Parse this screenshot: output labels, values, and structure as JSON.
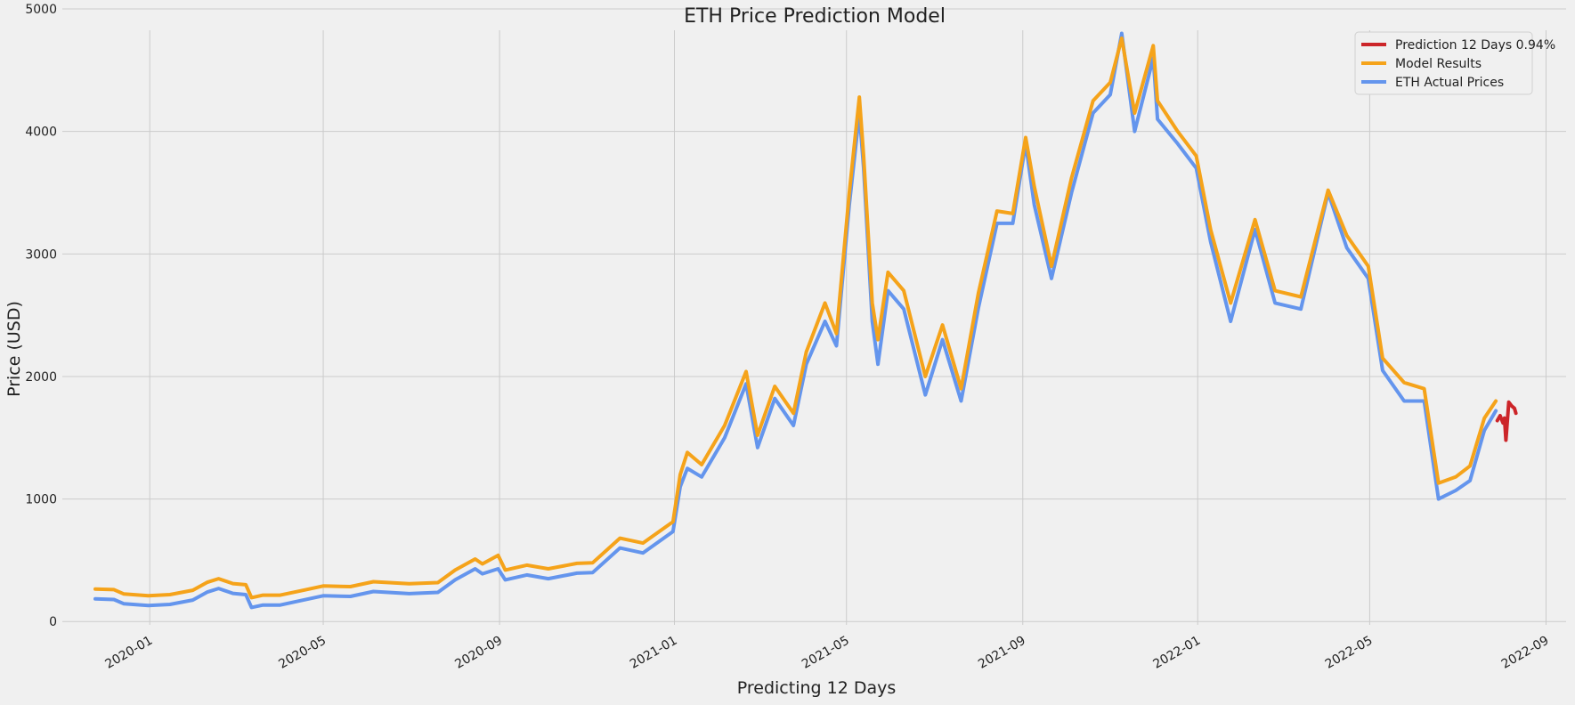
{
  "chart_data": {
    "type": "line",
    "title": "ETH Price Prediction Model",
    "xlabel": "Predicting 12 Days",
    "ylabel": "Price (USD)",
    "xlim": [
      "2019-11-01",
      "2022-09-15"
    ],
    "ylim": [
      -100,
      5000
    ],
    "y_ticks": [
      0,
      1000,
      2000,
      3000,
      4000,
      5000
    ],
    "x_ticks": [
      "2020-01",
      "2020-05",
      "2020-09",
      "2021-01",
      "2021-05",
      "2021-09",
      "2022-01",
      "2022-05",
      "2022-09"
    ],
    "grid": true,
    "legend_position": "top-right",
    "colors": {
      "background": "#f0f0f0",
      "grid": "#cbcbcb",
      "prediction": "#cc2529",
      "model": "#f5a31a",
      "actual": "#6495ed"
    },
    "series": [
      {
        "name": "ETH Actual Prices",
        "color": "#6495ed",
        "points": [
          [
            "2019-11-24",
            185
          ],
          [
            "2019-12-07",
            180
          ],
          [
            "2019-12-14",
            145
          ],
          [
            "2019-12-31",
            130
          ],
          [
            "2020-01-15",
            140
          ],
          [
            "2020-01-31",
            175
          ],
          [
            "2020-02-10",
            240
          ],
          [
            "2020-02-18",
            270
          ],
          [
            "2020-02-28",
            230
          ],
          [
            "2020-03-08",
            220
          ],
          [
            "2020-03-12",
            115
          ],
          [
            "2020-03-20",
            135
          ],
          [
            "2020-04-01",
            135
          ],
          [
            "2020-04-15",
            170
          ],
          [
            "2020-05-01",
            210
          ],
          [
            "2020-05-20",
            205
          ],
          [
            "2020-06-05",
            245
          ],
          [
            "2020-06-30",
            228
          ],
          [
            "2020-07-20",
            238
          ],
          [
            "2020-08-01",
            340
          ],
          [
            "2020-08-15",
            430
          ],
          [
            "2020-08-20",
            390
          ],
          [
            "2020-08-31",
            430
          ],
          [
            "2020-09-05",
            340
          ],
          [
            "2020-09-20",
            380
          ],
          [
            "2020-10-05",
            350
          ],
          [
            "2020-10-25",
            395
          ],
          [
            "2020-11-05",
            400
          ],
          [
            "2020-11-24",
            600
          ],
          [
            "2020-12-10",
            560
          ],
          [
            "2020-12-31",
            735
          ],
          [
            "2021-01-05",
            1100
          ],
          [
            "2021-01-10",
            1250
          ],
          [
            "2021-01-20",
            1180
          ],
          [
            "2021-02-05",
            1500
          ],
          [
            "2021-02-20",
            1940
          ],
          [
            "2021-02-28",
            1420
          ],
          [
            "2021-03-12",
            1820
          ],
          [
            "2021-03-25",
            1600
          ],
          [
            "2021-04-03",
            2100
          ],
          [
            "2021-04-16",
            2450
          ],
          [
            "2021-04-24",
            2250
          ],
          [
            "2021-05-03",
            3400
          ],
          [
            "2021-05-10",
            4150
          ],
          [
            "2021-05-13",
            3700
          ],
          [
            "2021-05-19",
            2450
          ],
          [
            "2021-05-23",
            2100
          ],
          [
            "2021-05-30",
            2700
          ],
          [
            "2021-06-10",
            2550
          ],
          [
            "2021-06-25",
            1850
          ],
          [
            "2021-07-07",
            2300
          ],
          [
            "2021-07-20",
            1800
          ],
          [
            "2021-08-01",
            2560
          ],
          [
            "2021-08-14",
            3250
          ],
          [
            "2021-08-25",
            3250
          ],
          [
            "2021-09-03",
            3900
          ],
          [
            "2021-09-09",
            3400
          ],
          [
            "2021-09-21",
            2800
          ],
          [
            "2021-10-05",
            3500
          ],
          [
            "2021-10-20",
            4150
          ],
          [
            "2021-11-01",
            4300
          ],
          [
            "2021-11-09",
            4800
          ],
          [
            "2021-11-18",
            4000
          ],
          [
            "2021-12-01",
            4600
          ],
          [
            "2021-12-04",
            4100
          ],
          [
            "2021-12-18",
            3900
          ],
          [
            "2021-12-31",
            3700
          ],
          [
            "2022-01-10",
            3100
          ],
          [
            "2022-01-24",
            2450
          ],
          [
            "2022-02-10",
            3200
          ],
          [
            "2022-02-24",
            2600
          ],
          [
            "2022-03-14",
            2550
          ],
          [
            "2022-04-02",
            3500
          ],
          [
            "2022-04-15",
            3050
          ],
          [
            "2022-04-30",
            2800
          ],
          [
            "2022-05-10",
            2050
          ],
          [
            "2022-05-25",
            1800
          ],
          [
            "2022-06-08",
            1800
          ],
          [
            "2022-06-18",
            1000
          ],
          [
            "2022-06-30",
            1070
          ],
          [
            "2022-07-10",
            1150
          ],
          [
            "2022-07-20",
            1560
          ],
          [
            "2022-07-28",
            1720
          ]
        ]
      },
      {
        "name": "Model Results",
        "color": "#f5a31a",
        "points": [
          [
            "2019-11-24",
            265
          ],
          [
            "2019-12-07",
            260
          ],
          [
            "2019-12-14",
            225
          ],
          [
            "2019-12-31",
            210
          ],
          [
            "2020-01-15",
            220
          ],
          [
            "2020-01-31",
            255
          ],
          [
            "2020-02-10",
            320
          ],
          [
            "2020-02-18",
            350
          ],
          [
            "2020-02-28",
            310
          ],
          [
            "2020-03-08",
            300
          ],
          [
            "2020-03-12",
            195
          ],
          [
            "2020-03-20",
            215
          ],
          [
            "2020-04-01",
            215
          ],
          [
            "2020-04-15",
            250
          ],
          [
            "2020-05-01",
            290
          ],
          [
            "2020-05-20",
            285
          ],
          [
            "2020-06-05",
            325
          ],
          [
            "2020-06-30",
            308
          ],
          [
            "2020-07-20",
            318
          ],
          [
            "2020-08-01",
            420
          ],
          [
            "2020-08-15",
            510
          ],
          [
            "2020-08-20",
            470
          ],
          [
            "2020-08-31",
            540
          ],
          [
            "2020-09-05",
            420
          ],
          [
            "2020-09-20",
            460
          ],
          [
            "2020-10-05",
            430
          ],
          [
            "2020-10-25",
            475
          ],
          [
            "2020-11-05",
            480
          ],
          [
            "2020-11-24",
            680
          ],
          [
            "2020-12-10",
            640
          ],
          [
            "2020-12-31",
            815
          ],
          [
            "2021-01-05",
            1200
          ],
          [
            "2021-01-10",
            1380
          ],
          [
            "2021-01-20",
            1280
          ],
          [
            "2021-02-05",
            1600
          ],
          [
            "2021-02-20",
            2040
          ],
          [
            "2021-02-28",
            1520
          ],
          [
            "2021-03-12",
            1920
          ],
          [
            "2021-03-25",
            1700
          ],
          [
            "2021-04-03",
            2200
          ],
          [
            "2021-04-16",
            2600
          ],
          [
            "2021-04-24",
            2350
          ],
          [
            "2021-05-03",
            3500
          ],
          [
            "2021-05-10",
            4280
          ],
          [
            "2021-05-13",
            3800
          ],
          [
            "2021-05-19",
            2600
          ],
          [
            "2021-05-23",
            2300
          ],
          [
            "2021-05-30",
            2850
          ],
          [
            "2021-06-10",
            2700
          ],
          [
            "2021-06-25",
            2000
          ],
          [
            "2021-07-07",
            2420
          ],
          [
            "2021-07-20",
            1900
          ],
          [
            "2021-08-01",
            2680
          ],
          [
            "2021-08-14",
            3350
          ],
          [
            "2021-08-25",
            3330
          ],
          [
            "2021-09-03",
            3950
          ],
          [
            "2021-09-09",
            3550
          ],
          [
            "2021-09-21",
            2900
          ],
          [
            "2021-10-05",
            3620
          ],
          [
            "2021-10-20",
            4250
          ],
          [
            "2021-11-01",
            4400
          ],
          [
            "2021-11-09",
            4760
          ],
          [
            "2021-11-18",
            4150
          ],
          [
            "2021-12-01",
            4700
          ],
          [
            "2021-12-04",
            4250
          ],
          [
            "2021-12-18",
            4000
          ],
          [
            "2021-12-31",
            3800
          ],
          [
            "2022-01-10",
            3200
          ],
          [
            "2022-01-24",
            2600
          ],
          [
            "2022-02-10",
            3280
          ],
          [
            "2022-02-24",
            2700
          ],
          [
            "2022-03-14",
            2650
          ],
          [
            "2022-04-02",
            3520
          ],
          [
            "2022-04-15",
            3150
          ],
          [
            "2022-04-30",
            2900
          ],
          [
            "2022-05-10",
            2150
          ],
          [
            "2022-05-25",
            1950
          ],
          [
            "2022-06-08",
            1900
          ],
          [
            "2022-06-18",
            1130
          ],
          [
            "2022-06-30",
            1180
          ],
          [
            "2022-07-10",
            1270
          ],
          [
            "2022-07-20",
            1660
          ],
          [
            "2022-07-28",
            1800
          ]
        ]
      },
      {
        "name": "Prediction 12 Days 0.94%",
        "color": "#cc2529",
        "points": [
          [
            "2022-07-29",
            1640
          ],
          [
            "2022-07-31",
            1680
          ],
          [
            "2022-08-02",
            1620
          ],
          [
            "2022-08-03",
            1660
          ],
          [
            "2022-08-04",
            1480
          ],
          [
            "2022-08-06",
            1790
          ],
          [
            "2022-08-08",
            1760
          ],
          [
            "2022-08-10",
            1740
          ],
          [
            "2022-08-11",
            1700
          ]
        ]
      }
    ]
  }
}
